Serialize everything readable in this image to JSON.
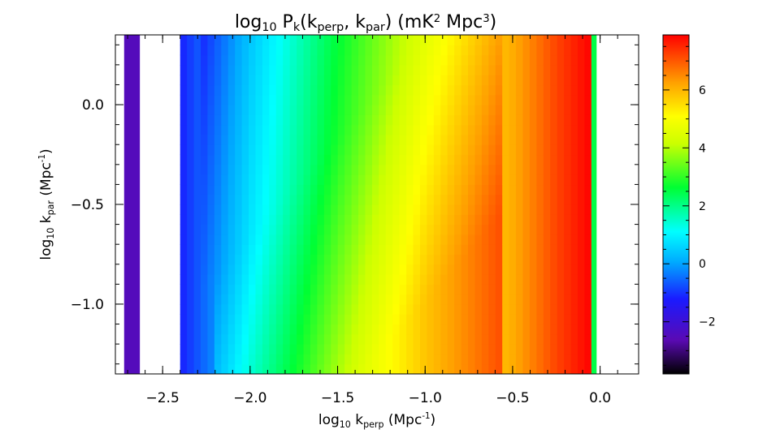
{
  "chart_data": {
    "type": "heatmap",
    "title_html": [
      "log",
      "10",
      " P",
      "k",
      "(k",
      "perp",
      ", k",
      "par",
      ")  (mK",
      "2",
      " Mpc",
      "3",
      ")"
    ],
    "xlabel_parts": [
      "log",
      "10",
      " k",
      "perp",
      " (Mpc",
      "-1",
      ")"
    ],
    "ylabel_parts": [
      "log",
      "10",
      " k",
      "par",
      " (Mpc",
      "-1",
      ")"
    ],
    "xlim": [
      -2.77,
      0.22
    ],
    "ylim": [
      -1.35,
      0.35
    ],
    "x_ticks": [
      {
        "value": -2.5,
        "label": "−2.5"
      },
      {
        "value": -2.0,
        "label": "−2.0"
      },
      {
        "value": -1.5,
        "label": "−1.5"
      },
      {
        "value": -1.0,
        "label": "−1.0"
      },
      {
        "value": -0.5,
        "label": "−0.5"
      },
      {
        "value": 0.0,
        "label": "0.0"
      }
    ],
    "y_ticks": [
      {
        "value": 0.0,
        "label": "0.0"
      },
      {
        "value": -0.5,
        "label": "−0.5"
      },
      {
        "value": -1.0,
        "label": "−1.0"
      }
    ],
    "colorbar": {
      "range": [
        -3.8,
        7.9
      ],
      "ticks": [
        {
          "value": -2,
          "label": "−2"
        },
        {
          "value": 0,
          "label": "0"
        },
        {
          "value": 2,
          "label": "2"
        },
        {
          "value": 4,
          "label": "4"
        },
        {
          "value": 6,
          "label": "6"
        }
      ]
    },
    "columns": [
      {
        "x0": -2.72,
        "x1": -2.63,
        "value": -2.5
      },
      {
        "x0": -2.4,
        "x1": -0.05,
        "value": "field"
      },
      {
        "x0": -0.05,
        "x1": -0.02,
        "value": 2.5
      }
    ],
    "field_profile": {
      "base_at_x": [
        {
          "x": -2.4,
          "v": -1.2
        },
        {
          "x": -2.0,
          "v": 0.8
        },
        {
          "x": -1.5,
          "v": 2.8
        },
        {
          "x": -1.0,
          "v": 4.6
        },
        {
          "x": -0.5,
          "v": 6.1
        },
        {
          "x": -0.25,
          "v": 7.2
        },
        {
          "x": -0.05,
          "v": 7.9
        }
      ],
      "wedge_slope": 1.0
    }
  }
}
